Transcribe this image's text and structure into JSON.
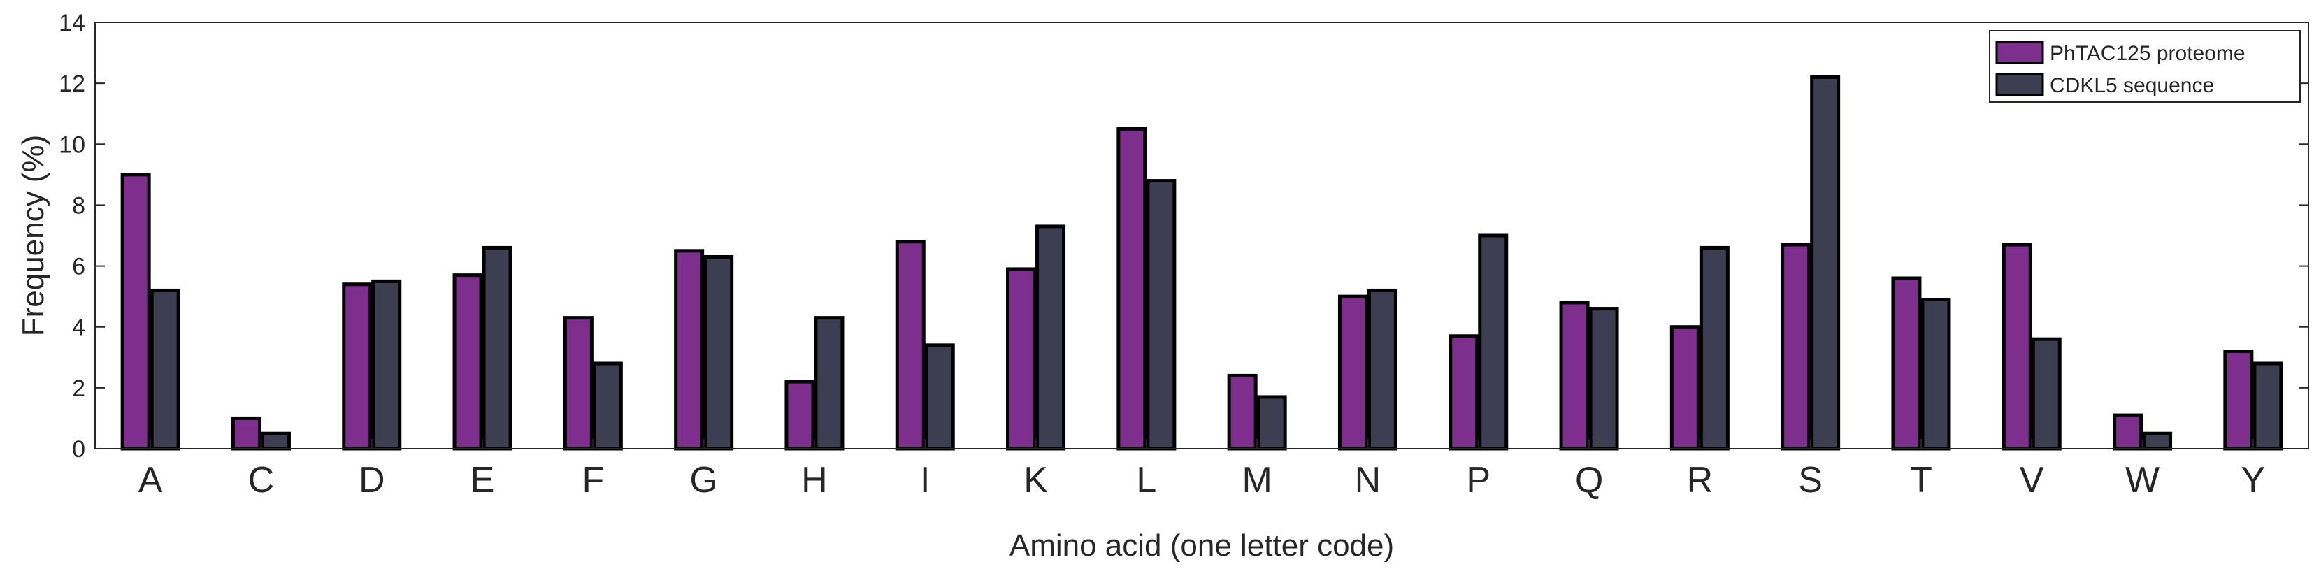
{
  "chart_data": {
    "type": "bar",
    "title": "",
    "xlabel": "Amino acid (one letter code)",
    "ylabel": "Frequency (%)",
    "ylim": [
      0,
      14
    ],
    "yticks": [
      0,
      2,
      4,
      6,
      8,
      10,
      12,
      14
    ],
    "grid": false,
    "legend_position": "top-right",
    "categories": [
      "A",
      "C",
      "D",
      "E",
      "F",
      "G",
      "H",
      "I",
      "K",
      "L",
      "M",
      "N",
      "P",
      "Q",
      "R",
      "S",
      "T",
      "V",
      "W",
      "Y"
    ],
    "series": [
      {
        "name": "PhTAC125 proteome",
        "color": "#7e2f8e",
        "values": [
          9.0,
          1.0,
          5.4,
          5.7,
          4.3,
          6.5,
          2.2,
          6.8,
          5.9,
          10.5,
          2.4,
          5.0,
          3.7,
          4.8,
          4.0,
          6.7,
          5.6,
          6.7,
          1.1,
          3.2
        ]
      },
      {
        "name": "CDKL5 sequence",
        "color": "#3e3e52",
        "values": [
          5.2,
          0.5,
          5.5,
          6.6,
          2.8,
          6.3,
          4.3,
          3.4,
          7.3,
          8.8,
          1.7,
          5.2,
          7.0,
          4.6,
          6.6,
          12.2,
          4.9,
          3.6,
          0.5,
          2.8
        ]
      }
    ]
  }
}
